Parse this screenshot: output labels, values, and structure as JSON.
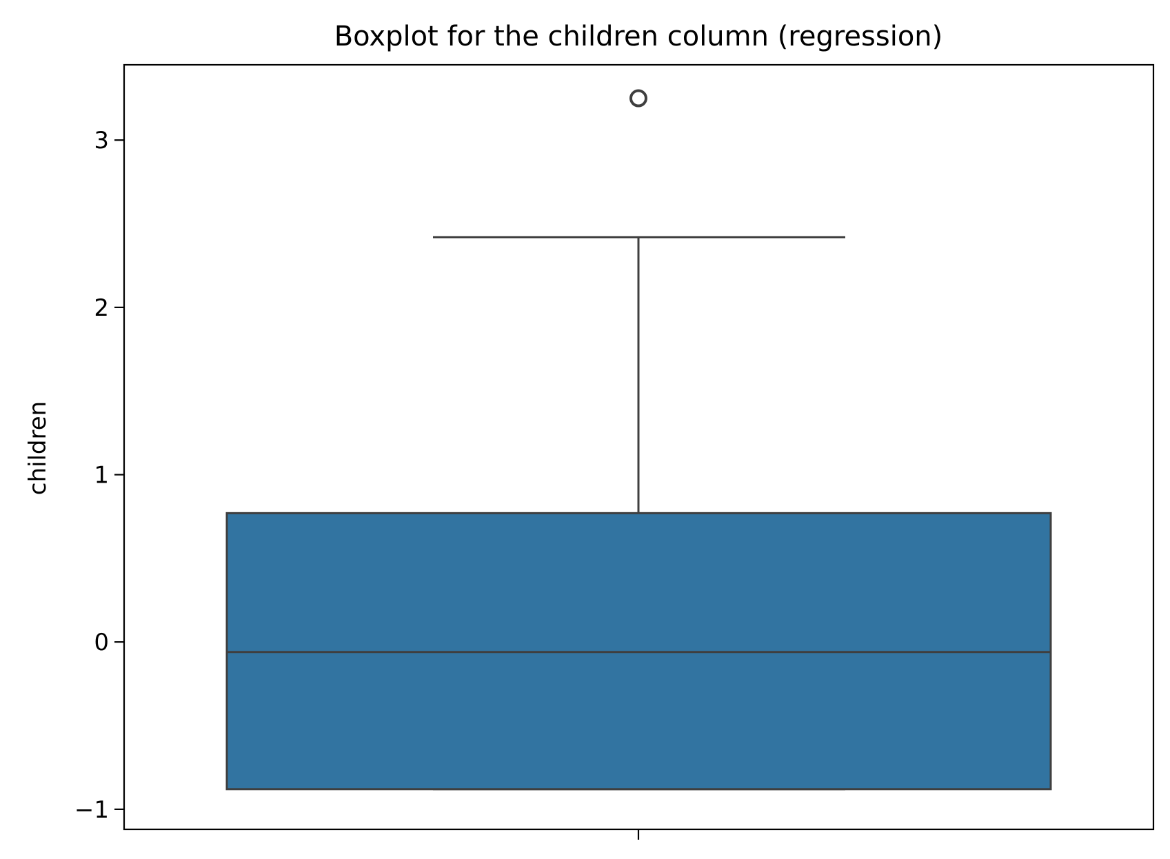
{
  "chart_data": {
    "type": "box",
    "title": "Boxplot for the children column (regression)",
    "xlabel": "",
    "ylabel": "children",
    "ylim": [
      -1.12,
      3.45
    ],
    "yticks": [
      -1,
      0,
      1,
      2,
      3
    ],
    "ytick_labels": [
      "−1",
      "0",
      "1",
      "2",
      "3"
    ],
    "grid": false,
    "box": {
      "whisker_low": -0.88,
      "q1": -0.88,
      "median": -0.06,
      "q3": 0.77,
      "whisker_high": 2.42,
      "outliers": [
        3.25
      ]
    },
    "colors": {
      "box_fill": "#3274a1",
      "line": "#3f3f3f"
    }
  }
}
